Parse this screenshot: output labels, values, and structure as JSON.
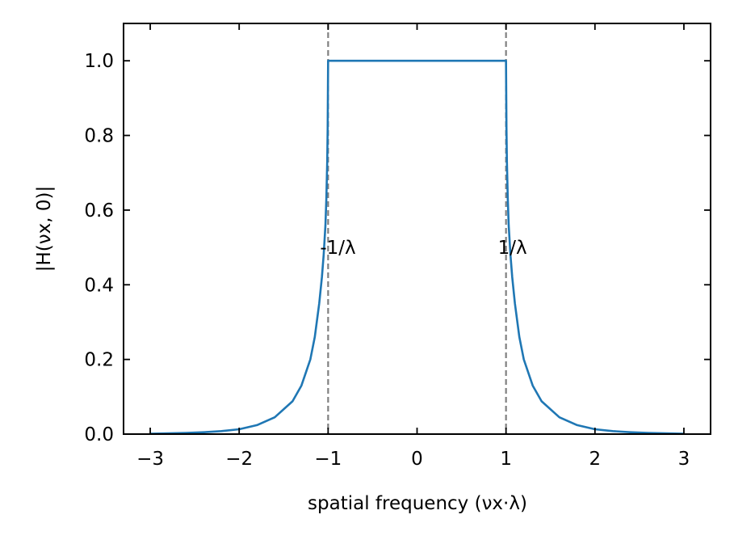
{
  "chart_data": {
    "type": "line",
    "xlabel": "spatial frequency (νx·λ)",
    "ylabel": "|H(νx, 0)|",
    "xlim": [
      -3.3,
      3.3
    ],
    "ylim": [
      0,
      1.1
    ],
    "xticks": [
      -3,
      -2,
      -1,
      0,
      1,
      2,
      3
    ],
    "xtick_labels": [
      "−3",
      "−2",
      "−1",
      "0",
      "1",
      "2",
      "3"
    ],
    "yticks": [
      0.0,
      0.2,
      0.4,
      0.6,
      0.8,
      1.0
    ],
    "ytick_labels": [
      "0.0",
      "0.2",
      "0.4",
      "0.6",
      "0.8",
      "1.0"
    ],
    "grid": false,
    "series": [
      {
        "color": "#1f77b4",
        "x": [
          -3.0,
          -2.8,
          -2.6,
          -2.4,
          -2.2,
          -2.0,
          -1.8,
          -1.6,
          -1.4,
          -1.3,
          -1.2,
          -1.15,
          -1.1,
          -1.07,
          -1.05,
          -1.03,
          -1.02,
          -1.01,
          -1.005,
          -1.0,
          1.0,
          1.005,
          1.01,
          1.02,
          1.03,
          1.05,
          1.07,
          1.1,
          1.15,
          1.2,
          1.3,
          1.4,
          1.6,
          1.8,
          2.0,
          2.2,
          2.4,
          2.6,
          2.8,
          3.0
        ],
        "y": [
          0.001,
          0.002,
          0.003,
          0.005,
          0.008,
          0.013,
          0.024,
          0.045,
          0.088,
          0.13,
          0.2,
          0.26,
          0.35,
          0.42,
          0.48,
          0.56,
          0.63,
          0.73,
          0.82,
          1.0,
          1.0,
          0.82,
          0.73,
          0.63,
          0.56,
          0.48,
          0.42,
          0.35,
          0.26,
          0.2,
          0.13,
          0.088,
          0.045,
          0.024,
          0.013,
          0.008,
          0.005,
          0.003,
          0.002,
          0.001
        ]
      }
    ],
    "vlines": [
      {
        "x": -1,
        "color": "#808080",
        "style": "dashed"
      },
      {
        "x": 1,
        "color": "#808080",
        "style": "dashed"
      }
    ],
    "annotations": [
      {
        "text": "-1/λ",
        "x": -1,
        "y": 0.5
      },
      {
        "text": "1/λ",
        "x": 1,
        "y": 0.5
      }
    ]
  }
}
